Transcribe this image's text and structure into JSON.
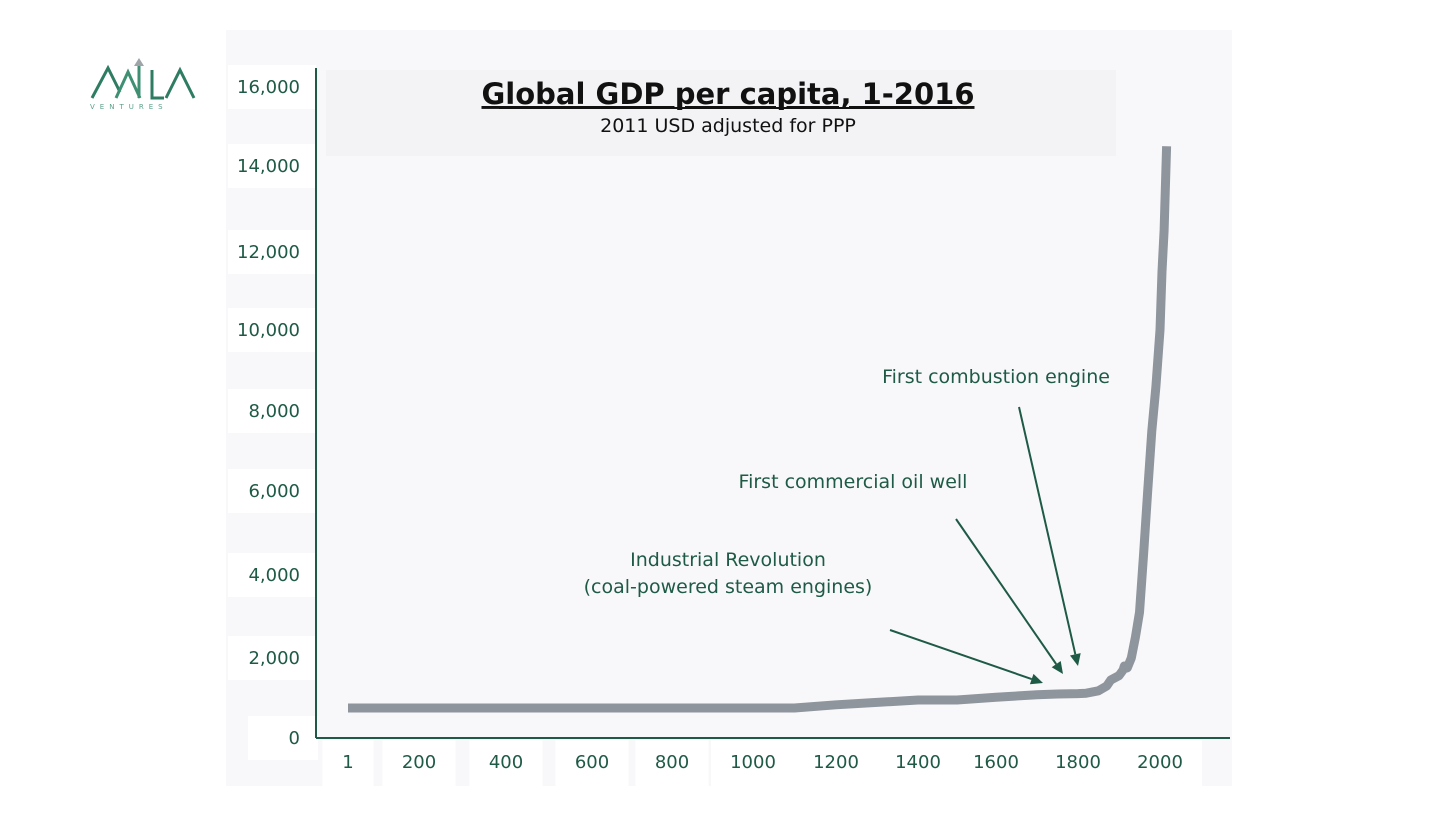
{
  "logo": {
    "name": "logo-icon",
    "subtext": "VENTURES"
  },
  "colors": {
    "axis": "#1e5a45",
    "text": "#1e5a45",
    "line": "#8e959d",
    "panel": "#f8f8fa"
  },
  "chart_data": {
    "type": "line",
    "title": "Global GDP per capita, 1-2016",
    "subtitle": "2011 USD adjusted for PPP",
    "xlabel": "",
    "ylabel": "",
    "x_ticks": [
      "1",
      "200",
      "400",
      "600",
      "800",
      "1000",
      "1200",
      "1400",
      "1600",
      "1800",
      "2000"
    ],
    "y_ticks": [
      "0",
      "2,000",
      "4,000",
      "6,000",
      "8,000",
      "10,000",
      "12,000",
      "14,000",
      "16,000"
    ],
    "ylim": [
      0,
      16000
    ],
    "grid": false,
    "series": [
      {
        "x": [
          1,
          1000,
          1100,
          1200,
          1300,
          1400,
          1500,
          1600,
          1700,
          1750,
          1800,
          1820,
          1850,
          1870,
          1880,
          1900,
          1910,
          1913,
          1920,
          1930,
          1940,
          1950,
          1960,
          1970,
          1980,
          1990,
          2000,
          2005,
          2010,
          2016
        ],
        "y": [
          750,
          750,
          750,
          830,
          890,
          950,
          950,
          1020,
          1080,
          1100,
          1110,
          1120,
          1180,
          1300,
          1450,
          1560,
          1700,
          1800,
          1750,
          2000,
          2500,
          3100,
          4500,
          6000,
          7500,
          8600,
          10000,
          11500,
          12500,
          14500
        ]
      }
    ],
    "annotations": [
      {
        "lines": [
          "Industrial Revolution",
          "(coal-powered steam engines)"
        ]
      },
      {
        "lines": [
          "First commercial oil well"
        ]
      },
      {
        "lines": [
          "First combustion engine"
        ]
      }
    ]
  }
}
